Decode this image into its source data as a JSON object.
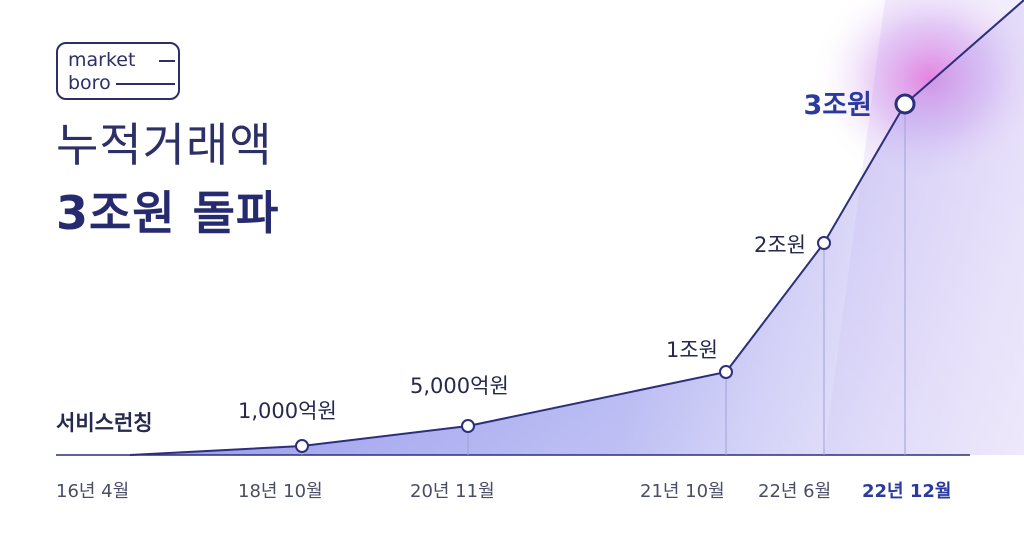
{
  "brand": {
    "line1": "market",
    "line2": "boro"
  },
  "headline": {
    "line1": "누적거래액",
    "line2": "3조원 돌파"
  },
  "chart_data": {
    "type": "area",
    "x": [
      "16년 4월",
      "18년 10월",
      "20년 11월",
      "21년 10월",
      "22년 6월",
      "22년 12월"
    ],
    "values": [
      0,
      1000,
      5000,
      10000,
      20000,
      30000
    ],
    "point_labels": [
      "서비스런칭",
      "1,000억원",
      "5,000억원",
      "1조원",
      "2조원",
      "3조원"
    ],
    "highlight_index": 5,
    "colors": {
      "line": "#2d2f7a",
      "fill": "#5a5fe0",
      "highlight": "#2b3a9e",
      "glow": "#e25fd6"
    }
  }
}
